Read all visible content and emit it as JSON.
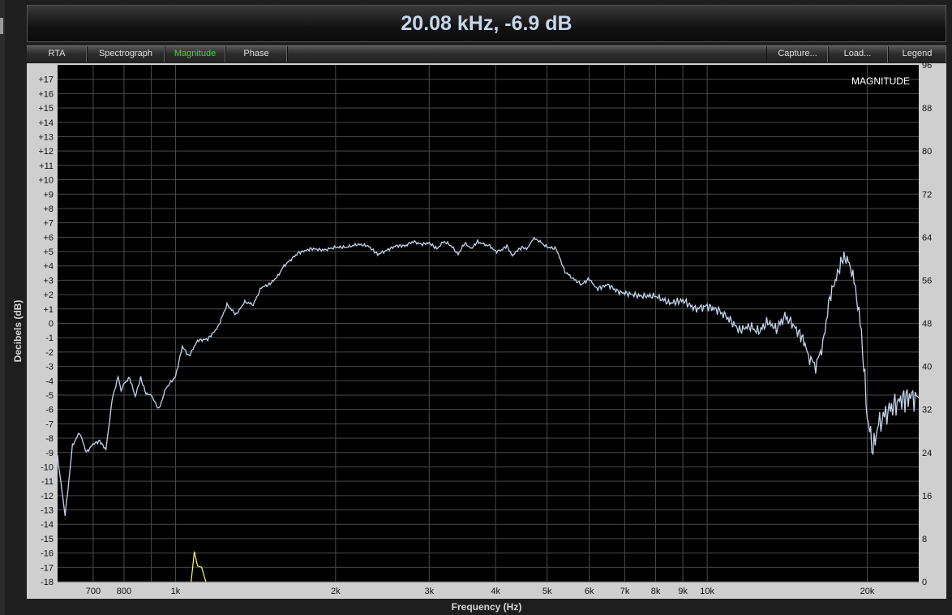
{
  "readout": "20.08 kHz, -6.9 dB",
  "tabs": [
    {
      "label": "RTA",
      "active": false
    },
    {
      "label": "Spectrograph",
      "active": false
    },
    {
      "label": "Magnitude",
      "active": true
    },
    {
      "label": "Phase",
      "active": false
    }
  ],
  "actions": [
    {
      "label": "Capture..."
    },
    {
      "label": "Load..."
    },
    {
      "label": "Legend"
    }
  ],
  "colors": {
    "trace": "#c4d4ec",
    "secondary_trace": "#ffff66",
    "active_tab": "#2fe02f",
    "readout": "#c7d6ea"
  },
  "chart_data": {
    "type": "line",
    "title": "MAGNITUDE",
    "xlabel": "Frequency (Hz)",
    "ylabel": "Decibels (dB)",
    "x_scale": "log",
    "xlim": [
      600,
      25000
    ],
    "ylim": [
      -18,
      18
    ],
    "y2lim": [
      0,
      96
    ],
    "x_tick_labels": [
      {
        "value": 700,
        "label": "700"
      },
      {
        "value": 800,
        "label": "800"
      },
      {
        "value": 1000,
        "label": "1k"
      },
      {
        "value": 2000,
        "label": "2k"
      },
      {
        "value": 3000,
        "label": "3k"
      },
      {
        "value": 4000,
        "label": "4k"
      },
      {
        "value": 5000,
        "label": "5k"
      },
      {
        "value": 6000,
        "label": "6k"
      },
      {
        "value": 7000,
        "label": "7k"
      },
      {
        "value": 8000,
        "label": "8k"
      },
      {
        "value": 9000,
        "label": "9k"
      },
      {
        "value": 10000,
        "label": "10k"
      },
      {
        "value": 20000,
        "label": "20k"
      }
    ],
    "x_minor_ticks": [
      900,
      30000
    ],
    "y_ticks": [
      17,
      16,
      15,
      14,
      13,
      12,
      11,
      10,
      9,
      8,
      7,
      6,
      5,
      4,
      3,
      2,
      1,
      0,
      -1,
      -2,
      -3,
      -4,
      -5,
      -6,
      -7,
      -8,
      -9,
      -10,
      -11,
      -12,
      -13,
      -14,
      -15,
      -16,
      -17,
      -18
    ],
    "y_tick_labels": [
      "+17",
      "+16",
      "+15",
      "+14",
      "+13",
      "+12",
      "+11",
      "+10",
      "+9",
      "+8",
      "+7",
      "+6",
      "+5",
      "+4",
      "+3",
      "+2",
      "+1",
      "0",
      "-1",
      "-2",
      "-3",
      "-4",
      "-5",
      "-6",
      "-7",
      "-8",
      "-9",
      "-10",
      "-11",
      "-12",
      "-13",
      "-14",
      "-15",
      "-16",
      "-17",
      "-18"
    ],
    "y2_ticks": [
      96,
      88,
      80,
      72,
      64,
      56,
      48,
      40,
      32,
      24,
      16,
      8,
      0
    ],
    "grid": true,
    "series": [
      {
        "x": [
          600,
          620,
          640,
          660,
          680,
          700,
          720,
          740,
          760,
          780,
          790,
          800,
          820,
          840,
          860,
          880,
          900,
          930,
          960,
          1000,
          1030,
          1060,
          1100,
          1150,
          1200,
          1250,
          1300,
          1350,
          1400,
          1450,
          1500,
          1550,
          1600,
          1700,
          1800,
          1900,
          2000,
          2100,
          2200,
          2300,
          2400,
          2500,
          2600,
          2700,
          2800,
          2900,
          3000,
          3100,
          3200,
          3300,
          3400,
          3500,
          3600,
          3700,
          3800,
          3900,
          4000,
          4100,
          4200,
          4300,
          4400,
          4500,
          4600,
          4700,
          4800,
          5000,
          5200,
          5400,
          5600,
          5800,
          6000,
          6200,
          6500,
          6800,
          7000,
          7500,
          8000,
          8500,
          9000,
          9500,
          10000,
          10500,
          11000,
          11500,
          12000,
          12500,
          13000,
          13500,
          14000,
          14500,
          15000,
          15200,
          15500,
          16000,
          16500,
          17000,
          17500,
          18000,
          18500,
          19000,
          19500,
          20000,
          20500,
          21000,
          22000,
          23000,
          24000,
          25000
        ],
        "y": [
          -9.3,
          -13.4,
          -8.5,
          -7.6,
          -9,
          -8.4,
          -8.2,
          -8.8,
          -5.3,
          -3.7,
          -4.7,
          -4.2,
          -3.8,
          -5.1,
          -3.8,
          -4.9,
          -5,
          -6,
          -4.5,
          -3.7,
          -1.6,
          -2.3,
          -1.2,
          -1.1,
          -0.3,
          1.3,
          0.6,
          1.5,
          1.3,
          2.5,
          2.7,
          3.2,
          4,
          4.9,
          5.2,
          5.1,
          5.3,
          5.3,
          5.5,
          5.4,
          4.8,
          5.1,
          5.4,
          5.4,
          5.7,
          5.5,
          5.6,
          5.2,
          5.7,
          5.4,
          4.8,
          5.6,
          5.2,
          5.7,
          5.5,
          5.4,
          5,
          5.1,
          5.4,
          4.7,
          5.1,
          5.3,
          5.2,
          5.9,
          5.8,
          5.3,
          5.2,
          3.6,
          3.1,
          2.7,
          3.1,
          2.4,
          2.7,
          2.2,
          2.1,
          1.9,
          1.9,
          1.4,
          1.6,
          1,
          1.2,
          0.9,
          0.3,
          -0.5,
          -0.2,
          -0.6,
          0.1,
          -0.4,
          0.5,
          -0.1,
          -0.9,
          -1.2,
          -2.3,
          -3,
          -1.5,
          1.8,
          3.2,
          4.6,
          4.3,
          2.5,
          -0.6,
          -6.5,
          -8.8,
          -7,
          -6,
          -5.4,
          -5.1,
          -5.2
        ]
      },
      {
        "x": [
          1070,
          1085,
          1100,
          1120,
          1140
        ],
        "y": [
          -18,
          -15.9,
          -16.9,
          -17,
          -18
        ]
      }
    ]
  }
}
